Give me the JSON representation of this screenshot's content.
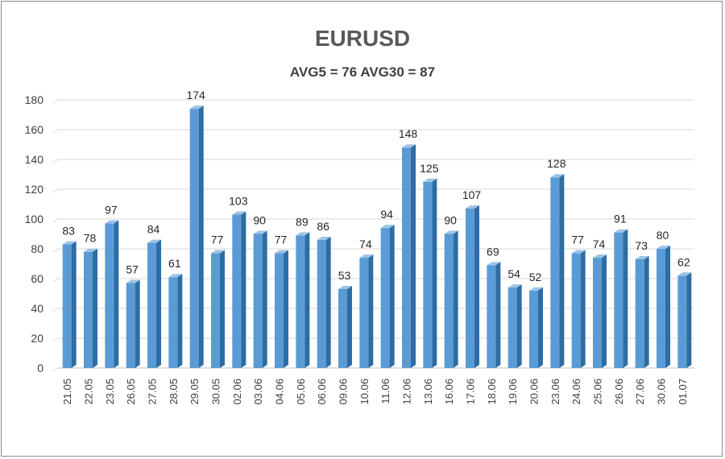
{
  "chart_data": {
    "type": "bar",
    "title": "EURUSD",
    "subtitle": "AVG5 = 76 AVG30 = 87",
    "categories": [
      "21.05",
      "22.05",
      "23.05",
      "26.05",
      "27.05",
      "28.05",
      "29.05",
      "30.05",
      "02.06",
      "03.06",
      "04.06",
      "05.06",
      "06.06",
      "09.06",
      "10.06",
      "11.06",
      "12.06",
      "13.06",
      "16.06",
      "17.06",
      "18.06",
      "19.06",
      "20.06",
      "23.06",
      "24.06",
      "25.06",
      "26.06",
      "27.06",
      "30.06",
      "01.07"
    ],
    "values": [
      83,
      78,
      97,
      57,
      84,
      61,
      174,
      77,
      103,
      90,
      77,
      89,
      86,
      53,
      74,
      94,
      148,
      125,
      90,
      107,
      69,
      54,
      52,
      128,
      77,
      74,
      91,
      73,
      80,
      62
    ],
    "ylim": [
      0,
      180
    ],
    "yticks": [
      0,
      20,
      40,
      60,
      80,
      100,
      120,
      140,
      160,
      180
    ],
    "grid": true,
    "legend": "none",
    "data_labels": true,
    "colors": {
      "bar_front": "#5b9bd5",
      "bar_side": "#2e6da4",
      "bar_top": "#9dc3e6",
      "grid": "#d9d9d9"
    }
  }
}
